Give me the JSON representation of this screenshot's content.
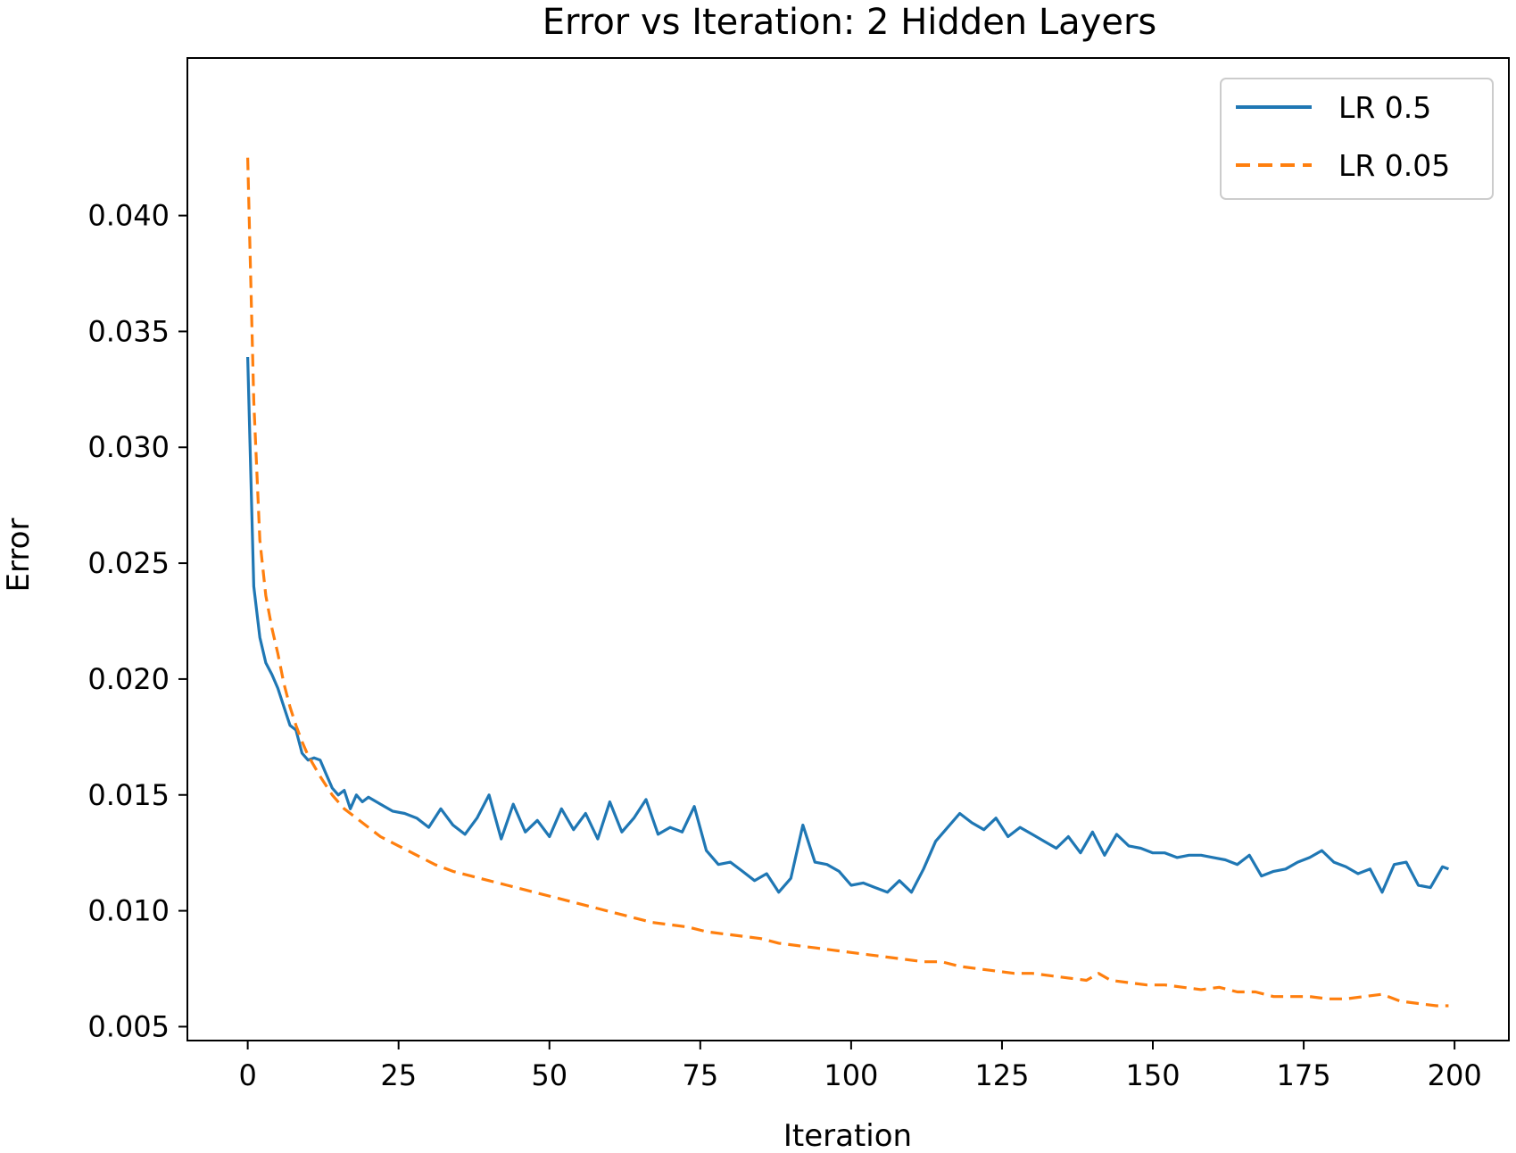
{
  "chart_data": {
    "type": "line",
    "title": "Error vs Iteration: 2 Hidden Layers",
    "xlabel": "Iteration",
    "ylabel": "Error",
    "xlim": [
      -10,
      209
    ],
    "ylim": [
      0.0044,
      0.0468
    ],
    "xticks": [
      0,
      25,
      50,
      75,
      100,
      125,
      150,
      175,
      200
    ],
    "xtick_labels": [
      "0",
      "25",
      "50",
      "75",
      "100",
      "125",
      "150",
      "175",
      "200"
    ],
    "yticks": [
      0.005,
      0.01,
      0.015,
      0.02,
      0.025,
      0.03,
      0.035,
      0.04
    ],
    "ytick_labels": [
      "0.005",
      "0.010",
      "0.015",
      "0.020",
      "0.025",
      "0.030",
      "0.035",
      "0.040"
    ],
    "grid": false,
    "legend_position": "top-right",
    "series": [
      {
        "name": "LR 0.5",
        "color": "#1f77b4",
        "dash": "solid",
        "x": [
          0,
          1,
          2,
          3,
          4,
          5,
          6,
          7,
          8,
          9,
          10,
          11,
          12,
          13,
          14,
          15,
          16,
          17,
          18,
          19,
          20,
          22,
          24,
          26,
          28,
          30,
          32,
          34,
          36,
          38,
          40,
          42,
          44,
          46,
          48,
          50,
          52,
          54,
          56,
          58,
          60,
          62,
          64,
          66,
          68,
          70,
          72,
          74,
          76,
          78,
          80,
          82,
          84,
          86,
          88,
          90,
          92,
          94,
          96,
          98,
          100,
          102,
          104,
          106,
          108,
          110,
          112,
          114,
          116,
          118,
          120,
          122,
          124,
          126,
          128,
          130,
          132,
          134,
          136,
          138,
          140,
          142,
          144,
          146,
          148,
          150,
          152,
          154,
          156,
          158,
          160,
          162,
          164,
          166,
          168,
          170,
          172,
          174,
          176,
          178,
          180,
          182,
          184,
          186,
          188,
          190,
          192,
          194,
          196,
          198,
          199
        ],
        "y": [
          0.0339,
          0.024,
          0.0218,
          0.0207,
          0.0202,
          0.0196,
          0.0188,
          0.018,
          0.0178,
          0.0168,
          0.0165,
          0.0166,
          0.0165,
          0.0159,
          0.0153,
          0.015,
          0.0152,
          0.0144,
          0.015,
          0.0147,
          0.0149,
          0.0146,
          0.0143,
          0.0142,
          0.014,
          0.0136,
          0.0144,
          0.0137,
          0.0133,
          0.014,
          0.015,
          0.0131,
          0.0146,
          0.0134,
          0.0139,
          0.0132,
          0.0144,
          0.0135,
          0.0142,
          0.0131,
          0.0147,
          0.0134,
          0.014,
          0.0148,
          0.0133,
          0.0136,
          0.0134,
          0.0145,
          0.0126,
          0.012,
          0.0121,
          0.0117,
          0.0113,
          0.0116,
          0.0108,
          0.0114,
          0.0137,
          0.0121,
          0.012,
          0.0117,
          0.0111,
          0.0112,
          0.011,
          0.0108,
          0.0113,
          0.0108,
          0.0118,
          0.013,
          0.0136,
          0.0142,
          0.0138,
          0.0135,
          0.014,
          0.0132,
          0.0136,
          0.0133,
          0.013,
          0.0127,
          0.0132,
          0.0125,
          0.0134,
          0.0124,
          0.0133,
          0.0128,
          0.0127,
          0.0125,
          0.0125,
          0.0123,
          0.0124,
          0.0124,
          0.0123,
          0.0122,
          0.012,
          0.0124,
          0.0115,
          0.0117,
          0.0118,
          0.0121,
          0.0123,
          0.0126,
          0.0121,
          0.0119,
          0.0116,
          0.0118,
          0.0108,
          0.012,
          0.0121,
          0.0111,
          0.011,
          0.0119,
          0.0118
        ]
      },
      {
        "name": "LR 0.05",
        "color": "#ff7f0e",
        "dash": "dashed",
        "x": [
          0,
          1,
          2,
          3,
          4,
          5,
          6,
          7,
          8,
          9,
          10,
          12,
          14,
          16,
          18,
          20,
          22,
          25,
          28,
          31,
          34,
          37,
          40,
          43,
          46,
          49,
          52,
          55,
          58,
          61,
          64,
          67,
          70,
          73,
          76,
          79,
          82,
          85,
          88,
          91,
          94,
          97,
          100,
          103,
          106,
          109,
          112,
          115,
          118,
          121,
          124,
          127,
          130,
          133,
          136,
          139,
          141,
          143,
          146,
          149,
          152,
          155,
          158,
          161,
          164,
          167,
          170,
          173,
          176,
          179,
          182,
          185,
          188,
          191,
          194,
          197,
          199
        ],
        "y": [
          0.0425,
          0.032,
          0.026,
          0.0236,
          0.0222,
          0.0211,
          0.0198,
          0.0188,
          0.018,
          0.0173,
          0.0167,
          0.0158,
          0.015,
          0.0144,
          0.014,
          0.0136,
          0.0132,
          0.0128,
          0.0124,
          0.012,
          0.0117,
          0.0115,
          0.0113,
          0.0111,
          0.0109,
          0.0107,
          0.0105,
          0.0103,
          0.0101,
          0.0099,
          0.0097,
          0.0095,
          0.0094,
          0.0093,
          0.0091,
          0.009,
          0.0089,
          0.0088,
          0.0086,
          0.0085,
          0.0084,
          0.0083,
          0.0082,
          0.0081,
          0.008,
          0.0079,
          0.0078,
          0.0078,
          0.0076,
          0.0075,
          0.0074,
          0.0073,
          0.0073,
          0.0072,
          0.0071,
          0.007,
          0.0073,
          0.007,
          0.0069,
          0.0068,
          0.0068,
          0.0067,
          0.0066,
          0.0067,
          0.0065,
          0.0065,
          0.0063,
          0.0063,
          0.0063,
          0.0062,
          0.0062,
          0.0063,
          0.0064,
          0.0061,
          0.006,
          0.0059,
          0.0059
        ]
      }
    ]
  }
}
